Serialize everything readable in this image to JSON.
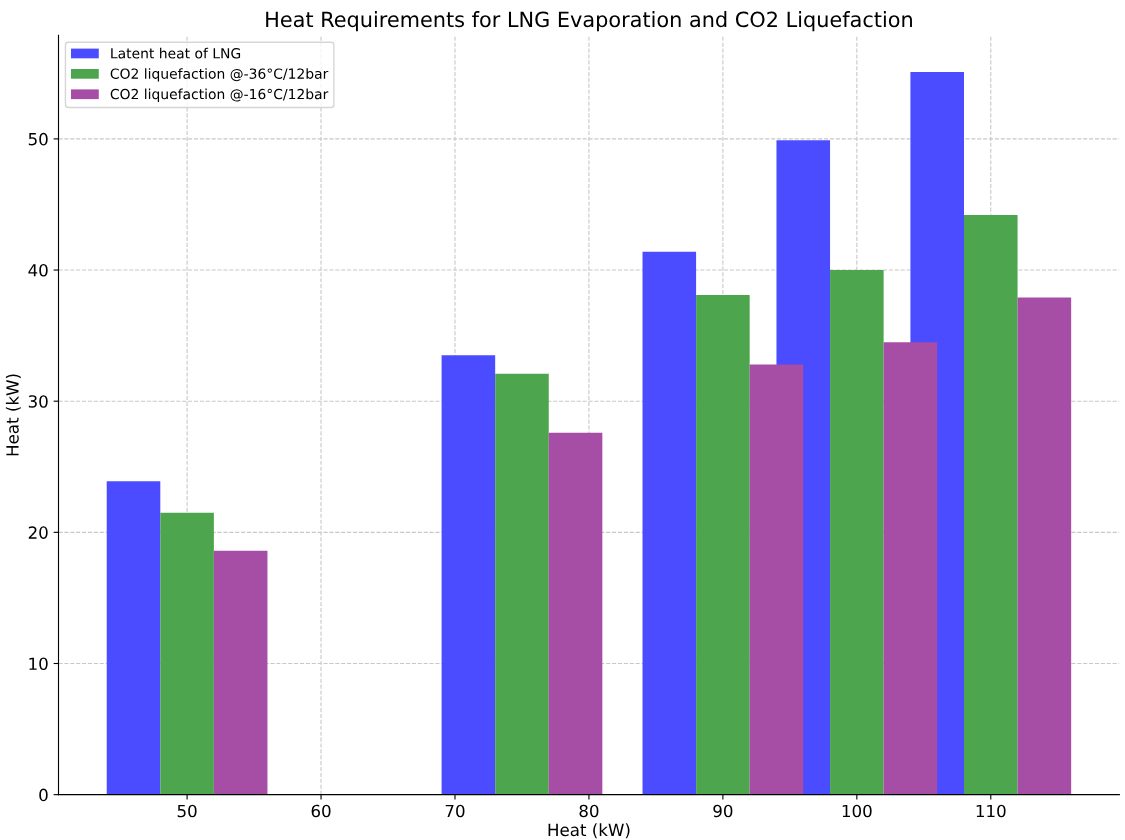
{
  "chart_data": {
    "type": "bar",
    "title": "Heat Requirements for LNG Evaporation and CO2 Liquefaction",
    "xlabel": "Heat (kW)",
    "ylabel": "Heat (kW)",
    "x": [
      50,
      75,
      90,
      100,
      110
    ],
    "series": [
      {
        "name": "Latent heat of LNG",
        "color": "#4b4bff",
        "values": [
          23.9,
          33.5,
          41.4,
          49.9,
          55.1
        ]
      },
      {
        "name": "CO2 liquefaction @-36°C/12bar",
        "color": "#4da64d",
        "values": [
          21.5,
          32.1,
          38.1,
          40.0,
          44.2
        ]
      },
      {
        "name": "CO2 liquefaction @-16°C/12bar",
        "color": "#a64da6",
        "values": [
          18.6,
          27.6,
          32.8,
          34.5,
          37.9
        ]
      }
    ],
    "xlim": [
      40.4,
      119.6
    ],
    "ylim": [
      0,
      57.9
    ],
    "xticks": [
      50,
      60,
      70,
      80,
      90,
      100,
      110
    ],
    "yticks": [
      0,
      10,
      20,
      30,
      40,
      50
    ],
    "grid": true,
    "legend": "top left"
  }
}
